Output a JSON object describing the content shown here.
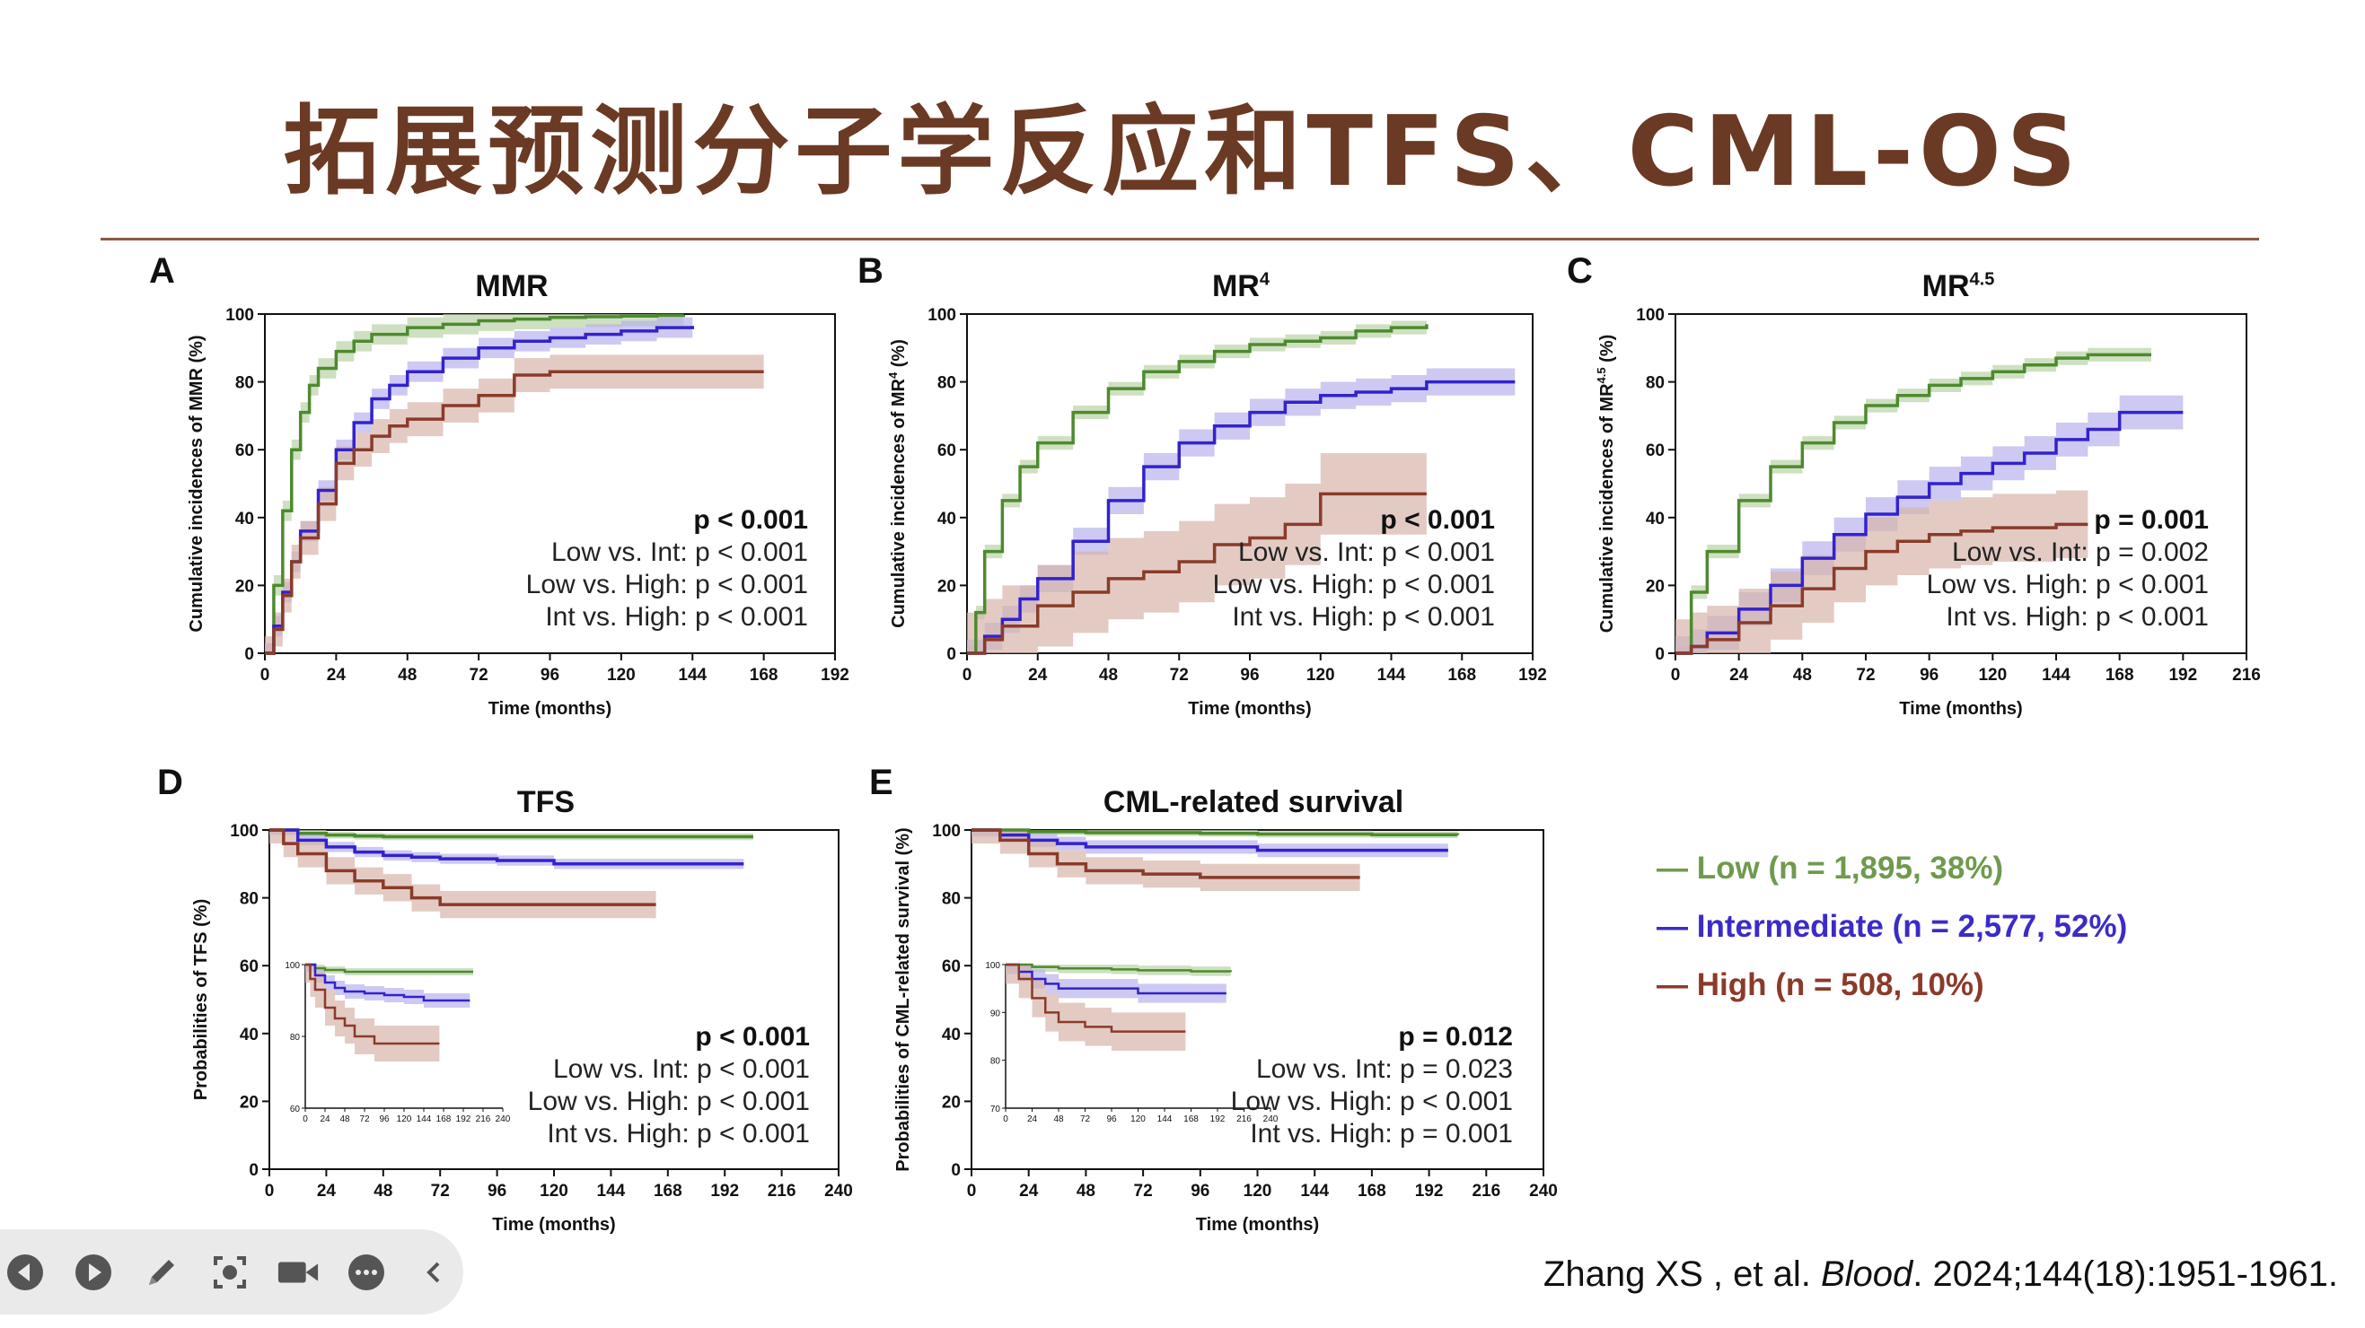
{
  "slide": {
    "title": "拓展预测分子学反应和TFS、CML-OS",
    "citation_author": "Zhang XS , et al. ",
    "citation_journal": "Blood",
    "citation_rest": ". 2024;144(18):1951-1961."
  },
  "legend": [
    {
      "label": "— Low (n = 1,895, 38%)",
      "color": "#6f9a4e"
    },
    {
      "label": "— Intermediate (n = 2,577, 52%)",
      "color": "#3b2bc8"
    },
    {
      "label": "— High (n = 508, 10%)",
      "color": "#8b3a2a"
    }
  ],
  "colors": {
    "low": "#4d8a2e",
    "int": "#3322cc",
    "high": "#8a3b2a",
    "title": "#6b3a24"
  },
  "toolbar_icons": [
    "prev-icon",
    "play-icon",
    "pen-icon",
    "screenshot-icon",
    "camera-icon",
    "more-icon",
    "collapse-icon"
  ],
  "chart_data": [
    {
      "id": "A",
      "letter": "A",
      "title": "MMR",
      "title_sup": "",
      "type": "line",
      "ylabel": "Cumulative incidences of MMR (%)",
      "ylabel_sup": "",
      "xlabel": "Time (months)",
      "xlim": [
        0,
        192
      ],
      "xticks": [
        0,
        24,
        48,
        72,
        96,
        120,
        144,
        168,
        192
      ],
      "ylim": [
        0,
        100
      ],
      "yticks": [
        0,
        20,
        40,
        60,
        80,
        100
      ],
      "stats": {
        "main": "p < 0.001",
        "lines": [
          "Low vs. Int: p < 0.001",
          "Low vs. High: p < 0.001",
          "Int vs. High: p < 0.001"
        ]
      },
      "series": [
        {
          "key": "low",
          "ci": 3,
          "x": [
            0,
            3,
            6,
            9,
            12,
            15,
            18,
            24,
            30,
            36,
            48,
            60,
            72,
            84,
            96,
            108,
            120,
            132,
            141
          ],
          "y": [
            0,
            20,
            42,
            60,
            71,
            79,
            84,
            89,
            92,
            94,
            96,
            97,
            98,
            98.5,
            99,
            99.2,
            99.4,
            99.6,
            99.7
          ]
        },
        {
          "key": "int",
          "ci": 3,
          "x": [
            0,
            3,
            6,
            9,
            12,
            18,
            24,
            30,
            36,
            42,
            48,
            60,
            72,
            84,
            96,
            108,
            120,
            132,
            144
          ],
          "y": [
            0,
            8,
            18,
            27,
            36,
            48,
            60,
            68,
            75,
            79,
            83,
            87,
            90,
            92,
            93,
            94,
            95,
            96,
            96.5
          ]
        },
        {
          "key": "high",
          "ci": 5,
          "x": [
            0,
            3,
            6,
            9,
            12,
            18,
            24,
            30,
            36,
            42,
            48,
            60,
            72,
            84,
            96,
            108,
            120,
            144,
            168
          ],
          "y": [
            0,
            7,
            17,
            27,
            34,
            44,
            56,
            60,
            64,
            67,
            69,
            73,
            76,
            82,
            83,
            83,
            83,
            83,
            83
          ]
        }
      ]
    },
    {
      "id": "B",
      "letter": "B",
      "title": "MR",
      "title_sup": "4",
      "type": "line",
      "ylabel": "Cumulative incidences of MR",
      "ylabel_sup": "4",
      "xlabel": "Time (months)",
      "xlim": [
        0,
        192
      ],
      "xticks": [
        0,
        24,
        48,
        72,
        96,
        120,
        144,
        168,
        192
      ],
      "ylim": [
        0,
        100
      ],
      "yticks": [
        0,
        20,
        40,
        60,
        80,
        100
      ],
      "stats": {
        "main": "p < 0.001",
        "lines": [
          "Low vs. Int: p < 0.001",
          "Low vs. High: p < 0.001",
          "Int vs. High: p < 0.001"
        ]
      },
      "series": [
        {
          "key": "low",
          "ci": 2,
          "x": [
            0,
            3,
            6,
            12,
            18,
            24,
            36,
            48,
            60,
            72,
            84,
            96,
            108,
            120,
            132,
            144,
            156
          ],
          "y": [
            0,
            12,
            30,
            45,
            55,
            62,
            71,
            78,
            83,
            86,
            89,
            91,
            92,
            93,
            95,
            96,
            97
          ]
        },
        {
          "key": "int",
          "ci": 4,
          "x": [
            0,
            6,
            12,
            18,
            24,
            36,
            48,
            60,
            72,
            84,
            96,
            108,
            120,
            132,
            144,
            156,
            168,
            180,
            186
          ],
          "y": [
            0,
            5,
            10,
            16,
            22,
            33,
            45,
            55,
            62,
            67,
            71,
            74,
            76,
            77,
            78,
            80,
            80,
            80,
            80
          ]
        },
        {
          "key": "high",
          "ci": 12,
          "x": [
            0,
            6,
            12,
            24,
            36,
            48,
            60,
            72,
            84,
            96,
            108,
            120,
            132,
            144,
            156
          ],
          "y": [
            0,
            4,
            8,
            14,
            18,
            22,
            24,
            27,
            32,
            34,
            38,
            47,
            47,
            47,
            47
          ]
        }
      ]
    },
    {
      "id": "C",
      "letter": "C",
      "title": "MR",
      "title_sup": "4.5",
      "type": "line",
      "ylabel": "Cumulative incidences of MR",
      "ylabel_sup": "4.5",
      "xlabel": "Time (months)",
      "xlim": [
        0,
        216
      ],
      "xticks": [
        0,
        24,
        48,
        72,
        96,
        120,
        144,
        168,
        192,
        216
      ],
      "ylim": [
        0,
        100
      ],
      "yticks": [
        0,
        20,
        40,
        60,
        80,
        100
      ],
      "stats": {
        "main": "p = 0.001",
        "lines": [
          "Low vs. Int: p = 0.002",
          "Low vs. High: p < 0.001",
          "Int vs. High: p < 0.001"
        ]
      },
      "series": [
        {
          "key": "low",
          "ci": 2,
          "x": [
            0,
            6,
            12,
            24,
            36,
            48,
            60,
            72,
            84,
            96,
            108,
            120,
            132,
            144,
            156,
            168,
            180
          ],
          "y": [
            0,
            18,
            30,
            45,
            55,
            62,
            68,
            73,
            76,
            79,
            81,
            83,
            85,
            87,
            88,
            88,
            88
          ]
        },
        {
          "key": "int",
          "ci": 5,
          "x": [
            0,
            6,
            12,
            24,
            36,
            48,
            60,
            72,
            84,
            96,
            108,
            120,
            132,
            144,
            156,
            168,
            180,
            192
          ],
          "y": [
            0,
            2,
            6,
            13,
            20,
            28,
            35,
            41,
            46,
            50,
            53,
            56,
            59,
            63,
            66,
            71,
            71,
            71
          ]
        },
        {
          "key": "high",
          "ci": 10,
          "x": [
            0,
            6,
            12,
            24,
            36,
            48,
            60,
            72,
            84,
            96,
            108,
            120,
            144,
            156
          ],
          "y": [
            0,
            2,
            4,
            9,
            14,
            19,
            25,
            30,
            33,
            35,
            36,
            37,
            38,
            38
          ]
        }
      ]
    },
    {
      "id": "D",
      "letter": "D",
      "title": "TFS",
      "title_sup": "",
      "type": "line",
      "ylabel": "Probabilities of TFS (%)",
      "ylabel_sup": "",
      "xlabel": "Time (months)",
      "xlim": [
        0,
        240
      ],
      "xticks": [
        0,
        24,
        48,
        72,
        96,
        120,
        144,
        168,
        192,
        216,
        240
      ],
      "ylim": [
        0,
        100
      ],
      "yticks": [
        0,
        20,
        40,
        60,
        80,
        100
      ],
      "stats": {
        "main": "p < 0.001",
        "lines": [
          "Low vs. Int: p < 0.001",
          "Low vs. High: p < 0.001",
          "Int vs. High: p < 0.001"
        ]
      },
      "series": [
        {
          "key": "low",
          "ci": 1,
          "x": [
            0,
            12,
            24,
            36,
            48,
            72,
            96,
            120,
            144,
            168,
            192,
            204
          ],
          "y": [
            100,
            99,
            98.5,
            98.2,
            98,
            98,
            98,
            98,
            98,
            98,
            98,
            98
          ]
        },
        {
          "key": "int",
          "ci": 1.5,
          "x": [
            0,
            12,
            24,
            36,
            48,
            60,
            72,
            96,
            120,
            144,
            168,
            200
          ],
          "y": [
            100,
            97,
            95,
            93.5,
            92.5,
            92,
            91.5,
            91,
            90,
            90,
            90,
            90
          ]
        },
        {
          "key": "high",
          "ci": 4,
          "x": [
            0,
            6,
            12,
            24,
            36,
            48,
            60,
            72,
            84,
            96,
            120,
            144,
            163
          ],
          "y": [
            100,
            96,
            93,
            88,
            85,
            83,
            80,
            78,
            78,
            78,
            78,
            78,
            78
          ]
        }
      ],
      "inset": {
        "xlim": [
          0,
          240
        ],
        "ylim": [
          60,
          100
        ],
        "xticks": [
          0,
          24,
          48,
          72,
          96,
          120,
          144,
          168,
          192,
          216,
          240
        ],
        "yticks": [
          60,
          80,
          100
        ],
        "series": [
          {
            "key": "low",
            "ci": 1,
            "x": [
              0,
              12,
              24,
              48,
              96,
              144,
              204
            ],
            "y": [
              100,
              99,
              98.5,
              98,
              98,
              98,
              98
            ]
          },
          {
            "key": "int",
            "ci": 2,
            "x": [
              0,
              12,
              24,
              36,
              48,
              72,
              96,
              120,
              144,
              200
            ],
            "y": [
              100,
              97,
              95,
              93.5,
              92.5,
              92,
              91.5,
              91,
              90,
              90
            ]
          },
          {
            "key": "high",
            "ci": 5,
            "x": [
              0,
              6,
              12,
              24,
              36,
              48,
              60,
              84,
              120,
              163
            ],
            "y": [
              100,
              96,
              93,
              88,
              85,
              83,
              80,
              78,
              78,
              78
            ]
          }
        ]
      }
    },
    {
      "id": "E",
      "letter": "E",
      "title": "CML-related survival",
      "title_sup": "",
      "type": "line",
      "ylabel": "Probabilities of CML-related survival (%)",
      "ylabel_sup": "",
      "xlabel": "Time (months)",
      "xlim": [
        0,
        240
      ],
      "xticks": [
        0,
        24,
        48,
        72,
        96,
        120,
        144,
        168,
        192,
        216,
        240
      ],
      "ylim": [
        0,
        100
      ],
      "yticks": [
        0,
        20,
        40,
        60,
        80,
        100
      ],
      "stats": {
        "main": "p = 0.012",
        "lines": [
          "Low vs. Int: p = 0.023",
          "Low vs. High: p < 0.001",
          "Int vs. High: p = 0.001"
        ]
      },
      "series": [
        {
          "key": "low",
          "ci": 1,
          "x": [
            0,
            24,
            48,
            96,
            120,
            168,
            204
          ],
          "y": [
            100,
            99.5,
            99.2,
            99,
            98.8,
            98.6,
            98.5
          ]
        },
        {
          "key": "int",
          "ci": 2,
          "x": [
            0,
            12,
            24,
            36,
            48,
            72,
            96,
            120,
            144,
            168,
            200
          ],
          "y": [
            100,
            98.5,
            97,
            96,
            95,
            95,
            95,
            94,
            94,
            94,
            94
          ]
        },
        {
          "key": "high",
          "ci": 4,
          "x": [
            0,
            12,
            24,
            36,
            48,
            60,
            72,
            96,
            120,
            144,
            163
          ],
          "y": [
            100,
            97,
            93,
            90,
            88,
            88,
            87,
            86,
            86,
            86,
            86
          ]
        }
      ],
      "inset": {
        "xlim": [
          0,
          240
        ],
        "ylim": [
          70,
          100
        ],
        "xticks": [
          0,
          24,
          48,
          72,
          96,
          120,
          144,
          168,
          192,
          216,
          240
        ],
        "yticks": [
          70,
          80,
          90,
          100
        ],
        "series": [
          {
            "key": "low",
            "ci": 1,
            "x": [
              0,
              24,
              48,
              96,
              120,
              168,
              204
            ],
            "y": [
              100,
              99.5,
              99.2,
              99,
              98.8,
              98.6,
              98.5
            ]
          },
          {
            "key": "int",
            "ci": 2,
            "x": [
              0,
              12,
              24,
              36,
              48,
              72,
              96,
              120,
              144,
              168,
              200
            ],
            "y": [
              100,
              98.5,
              97,
              96,
              95,
              95,
              95,
              94,
              94,
              94,
              94
            ]
          },
          {
            "key": "high",
            "ci": 4,
            "x": [
              0,
              12,
              24,
              36,
              48,
              60,
              72,
              96,
              120,
              144,
              163
            ],
            "y": [
              100,
              97,
              93,
              90,
              88,
              88,
              87,
              86,
              86,
              86,
              86
            ]
          }
        ]
      }
    }
  ]
}
